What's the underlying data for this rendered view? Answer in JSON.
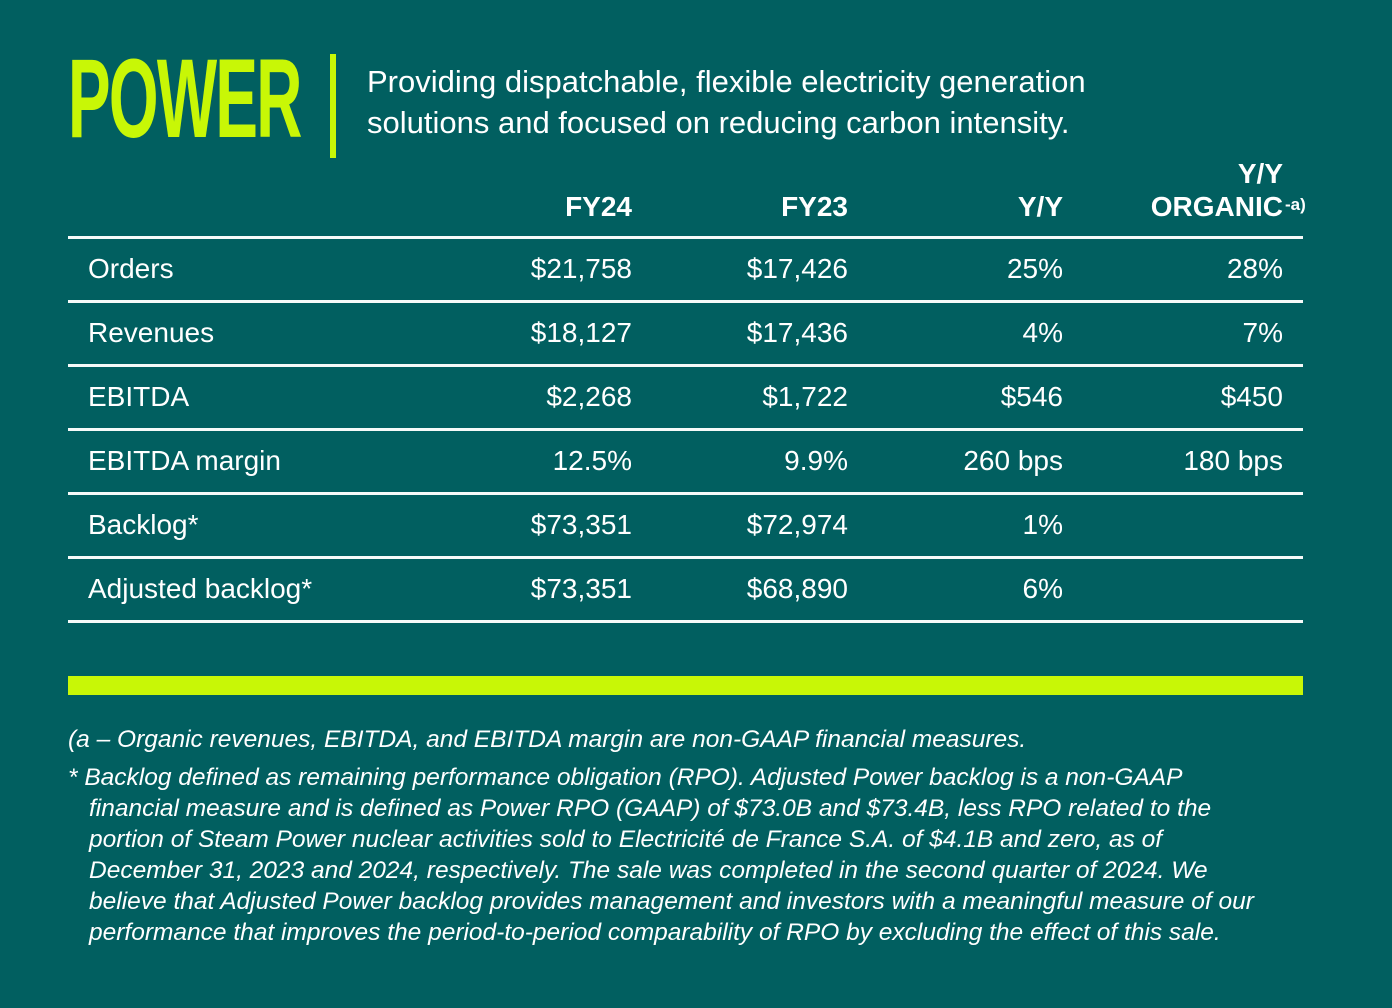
{
  "colors": {
    "background": "#015f60",
    "accent_lime": "#c8f706",
    "text": "#ffffff"
  },
  "header": {
    "title": "POWER",
    "description": "Providing dispatchable, flexible electricity generation\nsolutions and focused on reducing carbon intensity."
  },
  "table": {
    "headers": {
      "fy24": "FY24",
      "fy23": "FY23",
      "yy": "Y/Y",
      "organic_line1": "Y/Y",
      "organic_line2": "ORGANIC",
      "organic_superscript": "-a)"
    },
    "rows": [
      {
        "label": "Orders",
        "fy24": "$21,758",
        "fy23": "$17,426",
        "yy": "25%",
        "organic": "28%"
      },
      {
        "label": "Revenues",
        "fy24": "$18,127",
        "fy23": "$17,436",
        "yy": "4%",
        "organic": "7%"
      },
      {
        "label": "EBITDA",
        "fy24": "$2,268",
        "fy23": "$1,722",
        "yy": "$546",
        "organic": "$450"
      },
      {
        "label": "EBITDA margin",
        "fy24": "12.5%",
        "fy23": "9.9%",
        "yy": "260 bps",
        "organic": "180 bps"
      },
      {
        "label": "Backlog*",
        "fy24": "$73,351",
        "fy23": "$72,974",
        "yy": "1%",
        "organic": ""
      },
      {
        "label": "Adjusted backlog*",
        "fy24": "$73,351",
        "fy23": "$68,890",
        "yy": "6%",
        "organic": ""
      }
    ]
  },
  "footnotes": {
    "note_a": "(a – Organic revenues, EBITDA, and EBITDA margin are non-GAAP financial measures.",
    "note_asterisk": "* Backlog defined as remaining performance obligation (RPO). Adjusted Power backlog is a non-GAAP\nfinancial measure and is defined as Power RPO (GAAP) of $73.0B and $73.4B, less RPO related to the\nportion of Steam Power nuclear activities sold to Electricité de France S.A. of $4.1B and zero, as of\nDecember 31, 2023 and 2024, respectively. The sale was completed in the second quarter of 2024. We\nbelieve that Adjusted Power backlog provides management and investors with a meaningful measure of our\nperformance that improves the period-to-period comparability of RPO by excluding the effect of this sale."
  }
}
